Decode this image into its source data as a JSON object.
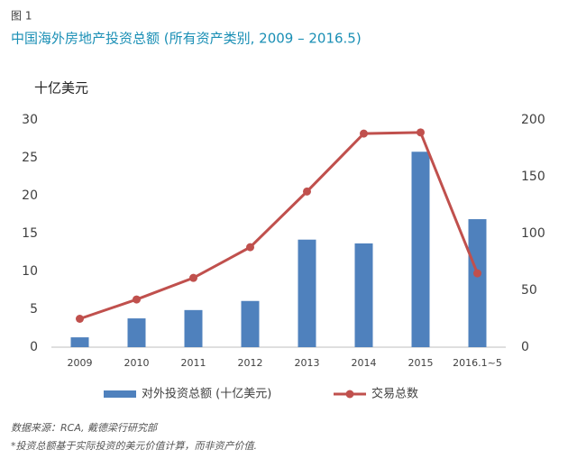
{
  "figure_label": "图 1",
  "notes": [
    "数据来源：RCA, 戴德梁行研究部",
    "*投资总额基于实际投资的美元价值计算，而非资产价值."
  ],
  "chart_data": {
    "type": "bar_line",
    "title": "中国海外房地产投资总额 (所有资产类别, 2009 – 2016.5)",
    "ylabel": "十亿美元",
    "categories": [
      "2009",
      "2010",
      "2011",
      "2012",
      "2013",
      "2014",
      "2015",
      "2016.1~5"
    ],
    "series": [
      {
        "name": "对外投资总额 (十亿美元)",
        "type": "bar",
        "color": "#4f81bd",
        "values": [
          1.3,
          3.8,
          4.9,
          6.1,
          14.2,
          13.7,
          25.8,
          16.9
        ]
      },
      {
        "name": "交易总数",
        "type": "line",
        "axis": "y2",
        "color": "#c0504d",
        "values": [
          25,
          42,
          61,
          88,
          137,
          188,
          189,
          65
        ]
      }
    ],
    "ylim": [
      0,
      30
    ],
    "yticks": [
      0,
      5,
      10,
      15,
      20,
      25,
      30
    ],
    "y2lim": [
      0,
      200
    ],
    "y2ticks": [
      0,
      50,
      100,
      150,
      200
    ],
    "legend": "bottom"
  }
}
